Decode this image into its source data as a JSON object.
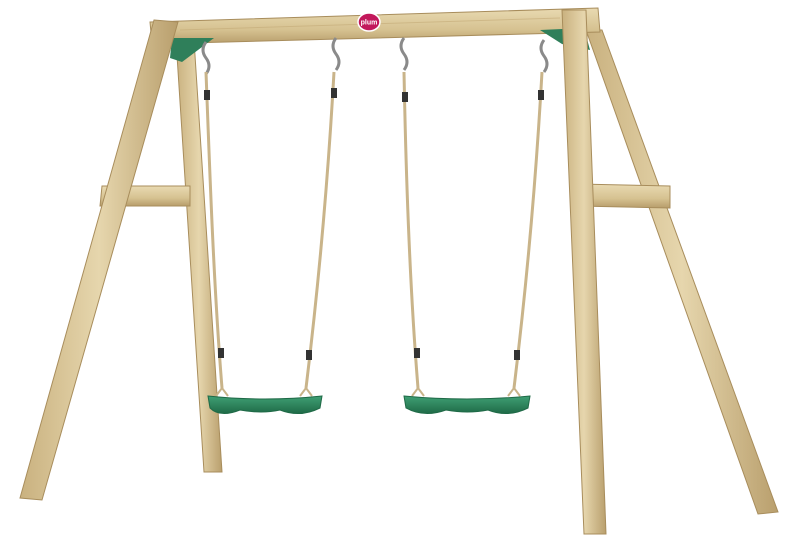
{
  "scene": {
    "subject": "wooden-double-swing-set",
    "colors": {
      "background": "#ffffff",
      "wood_light": "#e2d1a6",
      "wood_mid": "#cdb684",
      "wood_dark": "#a88d5c",
      "seat": "#2f8a62",
      "seat_dark": "#1f6a47",
      "bracket": "#2f7f5a",
      "rope": "#c9b48a",
      "chain": "#8a8a8a",
      "logo": "#c2185b"
    },
    "logo_text": "plum",
    "swings": [
      {
        "name": "left-swing"
      },
      {
        "name": "right-swing"
      }
    ]
  }
}
